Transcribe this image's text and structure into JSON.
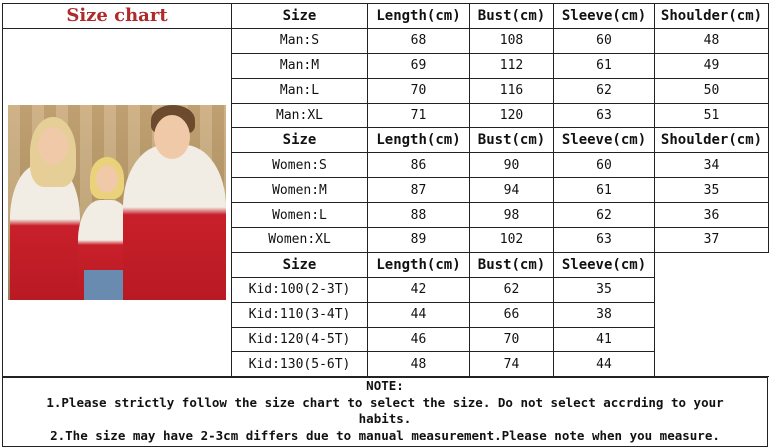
{
  "title": "Size chart",
  "men": {
    "headers": [
      "Size",
      "Length(cm)",
      "Bust(cm)",
      "Sleeve(cm)",
      "Shoulder(cm)"
    ],
    "rows": [
      [
        "Man:S",
        "68",
        "108",
        "60",
        "48"
      ],
      [
        "Man:M",
        "69",
        "112",
        "61",
        "49"
      ],
      [
        "Man:L",
        "70",
        "116",
        "62",
        "50"
      ],
      [
        "Man:XL",
        "71",
        "120",
        "63",
        "51"
      ]
    ]
  },
  "women": {
    "headers": [
      "Size",
      "Length(cm)",
      "Bust(cm)",
      "Sleeve(cm)",
      "Shoulder(cm)"
    ],
    "rows": [
      [
        "Women:S",
        "86",
        "90",
        "60",
        "34"
      ],
      [
        "Women:M",
        "87",
        "94",
        "61",
        "35"
      ],
      [
        "Women:L",
        "88",
        "98",
        "62",
        "36"
      ],
      [
        "Women:XL",
        "89",
        "102",
        "63",
        "37"
      ]
    ]
  },
  "kids": {
    "headers": [
      "Size",
      "Length(cm)",
      "Bust(cm)",
      "Sleeve(cm)"
    ],
    "rows": [
      [
        "Kid:100(2-3T)",
        "42",
        "62",
        "35"
      ],
      [
        "Kid:110(3-4T)",
        "44",
        "66",
        "38"
      ],
      [
        "Kid:120(4-5T)",
        "46",
        "70",
        "41"
      ],
      [
        "Kid:130(5-6T)",
        "48",
        "74",
        "44"
      ]
    ]
  },
  "notes": {
    "heading": "NOTE:",
    "line1": "1.Please strictly follow the size chart to select the size. Do not select accrding to your habits.",
    "line2": "2.The size may have 2-3cm differs  due to manual measurement.Please note when you measure."
  },
  "colors": {
    "title": "#b02a2a",
    "sweater_red": "#c8202a"
  }
}
